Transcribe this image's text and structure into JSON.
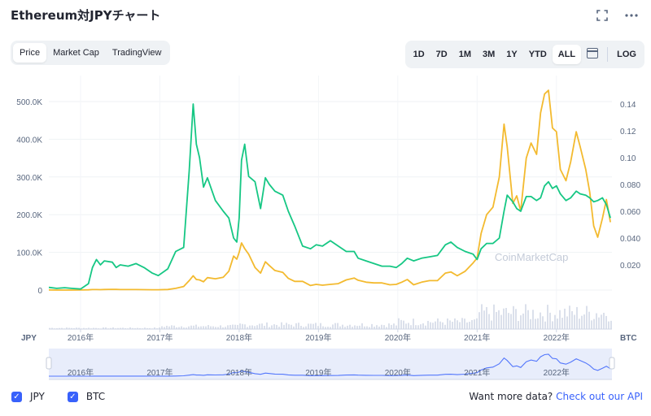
{
  "header": {
    "title": "Ethereum対JPYチャート",
    "expand_icon": "expand-icon",
    "more_icon": "more-horizontal-icon"
  },
  "tabs": [
    {
      "label": "Price",
      "active": true
    },
    {
      "label": "Market Cap",
      "active": false
    },
    {
      "label": "TradingView",
      "active": false
    }
  ],
  "ranges": [
    {
      "label": "1D",
      "active": false
    },
    {
      "label": "7D",
      "active": false
    },
    {
      "label": "1M",
      "active": false
    },
    {
      "label": "3M",
      "active": false
    },
    {
      "label": "1Y",
      "active": false
    },
    {
      "label": "YTD",
      "active": false
    },
    {
      "label": "ALL",
      "active": true
    }
  ],
  "calendar_icon": "calendar-icon",
  "log_label": "LOG",
  "legend": [
    {
      "label": "JPY",
      "checked": true
    },
    {
      "label": "BTC",
      "checked": true
    }
  ],
  "api": {
    "text": "Want more data?",
    "link": "Check out our API"
  },
  "watermark": "CoinMarketCap",
  "colors": {
    "jpy": "#f3ba2f",
    "btc": "#16c784",
    "accent": "#3861fb",
    "volume": "#cfd6e4"
  },
  "chart_data": {
    "type": "line",
    "left_axis_unit": "JPY",
    "right_axis_unit": "BTC",
    "y_left_ticks": [
      "0",
      "100.0K",
      "200.0K",
      "300.0K",
      "400.0K",
      "500.0K"
    ],
    "y_left_range": [
      -25000,
      525000
    ],
    "y_right_ticks": [
      "0.020",
      "0.040",
      "0.060",
      "0.080",
      "0.10",
      "0.12",
      "0.14"
    ],
    "y_right_range": [
      -0.02,
      0.148
    ],
    "x_ticks": [
      "2016年",
      "2017年",
      "2018年",
      "2019年",
      "2020年",
      "2021年",
      "2022年"
    ],
    "x_range": [
      2015.6,
      2022.7
    ],
    "navigator_ticks": [
      "2016年",
      "2017年",
      "2018年",
      "2019年",
      "2020年",
      "2021年",
      "2022年"
    ],
    "grid": true,
    "series": [
      {
        "name": "JPY",
        "axis": "left",
        "points": [
          [
            2015.6,
            200
          ],
          [
            2015.7,
            80
          ],
          [
            2015.8,
            100
          ],
          [
            2015.9,
            90
          ],
          [
            2016.0,
            110
          ],
          [
            2016.1,
            550
          ],
          [
            2016.15,
            1300
          ],
          [
            2016.2,
            1350
          ],
          [
            2016.25,
            1100
          ],
          [
            2016.3,
            1500
          ],
          [
            2016.4,
            2000
          ],
          [
            2016.45,
            1800
          ],
          [
            2016.5,
            1300
          ],
          [
            2016.6,
            1200
          ],
          [
            2016.7,
            1300
          ],
          [
            2016.8,
            1100
          ],
          [
            2016.9,
            900
          ],
          [
            2016.98,
            900
          ],
          [
            2017.1,
            1500
          ],
          [
            2017.2,
            4500
          ],
          [
            2017.3,
            9500
          ],
          [
            2017.37,
            25000
          ],
          [
            2017.42,
            38000
          ],
          [
            2017.46,
            28000
          ],
          [
            2017.5,
            27000
          ],
          [
            2017.55,
            22000
          ],
          [
            2017.6,
            33000
          ],
          [
            2017.7,
            30000
          ],
          [
            2017.8,
            34000
          ],
          [
            2017.87,
            50000
          ],
          [
            2017.93,
            90000
          ],
          [
            2017.97,
            82000
          ],
          [
            2018.0,
            100000
          ],
          [
            2018.03,
            125000
          ],
          [
            2018.07,
            110000
          ],
          [
            2018.12,
            95000
          ],
          [
            2018.2,
            60000
          ],
          [
            2018.27,
            45000
          ],
          [
            2018.33,
            75000
          ],
          [
            2018.38,
            65000
          ],
          [
            2018.45,
            52000
          ],
          [
            2018.55,
            47000
          ],
          [
            2018.62,
            31000
          ],
          [
            2018.7,
            23000
          ],
          [
            2018.8,
            23000
          ],
          [
            2018.9,
            12000
          ],
          [
            2018.97,
            15000
          ],
          [
            2019.05,
            13000
          ],
          [
            2019.15,
            15000
          ],
          [
            2019.25,
            17000
          ],
          [
            2019.35,
            27000
          ],
          [
            2019.45,
            32000
          ],
          [
            2019.5,
            26000
          ],
          [
            2019.6,
            21000
          ],
          [
            2019.7,
            19000
          ],
          [
            2019.8,
            19000
          ],
          [
            2019.9,
            14000
          ],
          [
            2019.98,
            15000
          ],
          [
            2020.05,
            21000
          ],
          [
            2020.12,
            28000
          ],
          [
            2020.2,
            14000
          ],
          [
            2020.3,
            21000
          ],
          [
            2020.4,
            25000
          ],
          [
            2020.5,
            25000
          ],
          [
            2020.6,
            45000
          ],
          [
            2020.67,
            48000
          ],
          [
            2020.75,
            38000
          ],
          [
            2020.85,
            50000
          ],
          [
            2020.95,
            72000
          ],
          [
            2021.0,
            85000
          ],
          [
            2021.05,
            150000
          ],
          [
            2021.12,
            200000
          ],
          [
            2021.2,
            220000
          ],
          [
            2021.28,
            300000
          ],
          [
            2021.34,
            440000
          ],
          [
            2021.38,
            380000
          ],
          [
            2021.45,
            230000
          ],
          [
            2021.5,
            250000
          ],
          [
            2021.55,
            210000
          ],
          [
            2021.62,
            350000
          ],
          [
            2021.68,
            390000
          ],
          [
            2021.75,
            360000
          ],
          [
            2021.8,
            470000
          ],
          [
            2021.85,
            520000
          ],
          [
            2021.9,
            530000
          ],
          [
            2021.95,
            430000
          ],
          [
            2022.0,
            420000
          ],
          [
            2022.05,
            320000
          ],
          [
            2022.12,
            290000
          ],
          [
            2022.18,
            340000
          ],
          [
            2022.25,
            420000
          ],
          [
            2022.3,
            380000
          ],
          [
            2022.37,
            320000
          ],
          [
            2022.42,
            260000
          ],
          [
            2022.47,
            170000
          ],
          [
            2022.52,
            140000
          ],
          [
            2022.58,
            190000
          ],
          [
            2022.63,
            240000
          ],
          [
            2022.68,
            180000
          ]
        ]
      },
      {
        "name": "BTC",
        "axis": "right",
        "points": [
          [
            2015.6,
            0.0032
          ],
          [
            2015.7,
            0.0025
          ],
          [
            2015.8,
            0.003
          ],
          [
            2015.9,
            0.0024
          ],
          [
            2016.0,
            0.002
          ],
          [
            2016.1,
            0.006
          ],
          [
            2016.15,
            0.018
          ],
          [
            2016.2,
            0.024
          ],
          [
            2016.25,
            0.02
          ],
          [
            2016.3,
            0.023
          ],
          [
            2016.4,
            0.022
          ],
          [
            2016.45,
            0.018
          ],
          [
            2016.5,
            0.02
          ],
          [
            2016.6,
            0.019
          ],
          [
            2016.7,
            0.021
          ],
          [
            2016.8,
            0.018
          ],
          [
            2016.9,
            0.014
          ],
          [
            2016.98,
            0.012
          ],
          [
            2017.1,
            0.017
          ],
          [
            2017.2,
            0.03
          ],
          [
            2017.3,
            0.033
          ],
          [
            2017.37,
            0.09
          ],
          [
            2017.42,
            0.14
          ],
          [
            2017.46,
            0.11
          ],
          [
            2017.5,
            0.1
          ],
          [
            2017.55,
            0.078
          ],
          [
            2017.6,
            0.085
          ],
          [
            2017.7,
            0.068
          ],
          [
            2017.8,
            0.06
          ],
          [
            2017.87,
            0.055
          ],
          [
            2017.93,
            0.04
          ],
          [
            2017.97,
            0.037
          ],
          [
            2018.0,
            0.055
          ],
          [
            2018.03,
            0.098
          ],
          [
            2018.07,
            0.11
          ],
          [
            2018.12,
            0.086
          ],
          [
            2018.2,
            0.082
          ],
          [
            2018.27,
            0.062
          ],
          [
            2018.33,
            0.085
          ],
          [
            2018.38,
            0.08
          ],
          [
            2018.45,
            0.075
          ],
          [
            2018.55,
            0.072
          ],
          [
            2018.62,
            0.06
          ],
          [
            2018.7,
            0.049
          ],
          [
            2018.8,
            0.034
          ],
          [
            2018.9,
            0.032
          ],
          [
            2018.97,
            0.035
          ],
          [
            2019.05,
            0.034
          ],
          [
            2019.15,
            0.038
          ],
          [
            2019.25,
            0.034
          ],
          [
            2019.35,
            0.03
          ],
          [
            2019.45,
            0.03
          ],
          [
            2019.5,
            0.025
          ],
          [
            2019.6,
            0.023
          ],
          [
            2019.7,
            0.021
          ],
          [
            2019.8,
            0.019
          ],
          [
            2019.9,
            0.019
          ],
          [
            2019.98,
            0.018
          ],
          [
            2020.05,
            0.021
          ],
          [
            2020.12,
            0.025
          ],
          [
            2020.2,
            0.023
          ],
          [
            2020.3,
            0.025
          ],
          [
            2020.4,
            0.026
          ],
          [
            2020.5,
            0.027
          ],
          [
            2020.6,
            0.035
          ],
          [
            2020.67,
            0.037
          ],
          [
            2020.75,
            0.033
          ],
          [
            2020.85,
            0.03
          ],
          [
            2020.95,
            0.028
          ],
          [
            2021.0,
            0.024
          ],
          [
            2021.05,
            0.032
          ],
          [
            2021.12,
            0.036
          ],
          [
            2021.2,
            0.036
          ],
          [
            2021.28,
            0.04
          ],
          [
            2021.34,
            0.06
          ],
          [
            2021.38,
            0.072
          ],
          [
            2021.45,
            0.067
          ],
          [
            2021.5,
            0.062
          ],
          [
            2021.55,
            0.06
          ],
          [
            2021.62,
            0.071
          ],
          [
            2021.68,
            0.071
          ],
          [
            2021.75,
            0.068
          ],
          [
            2021.8,
            0.07
          ],
          [
            2021.85,
            0.079
          ],
          [
            2021.9,
            0.082
          ],
          [
            2021.95,
            0.077
          ],
          [
            2022.0,
            0.079
          ],
          [
            2022.05,
            0.073
          ],
          [
            2022.12,
            0.068
          ],
          [
            2022.18,
            0.07
          ],
          [
            2022.25,
            0.075
          ],
          [
            2022.3,
            0.073
          ],
          [
            2022.37,
            0.072
          ],
          [
            2022.42,
            0.07
          ],
          [
            2022.47,
            0.067
          ],
          [
            2022.52,
            0.068
          ],
          [
            2022.58,
            0.07
          ],
          [
            2022.63,
            0.065
          ],
          [
            2022.68,
            0.055
          ]
        ]
      }
    ]
  }
}
